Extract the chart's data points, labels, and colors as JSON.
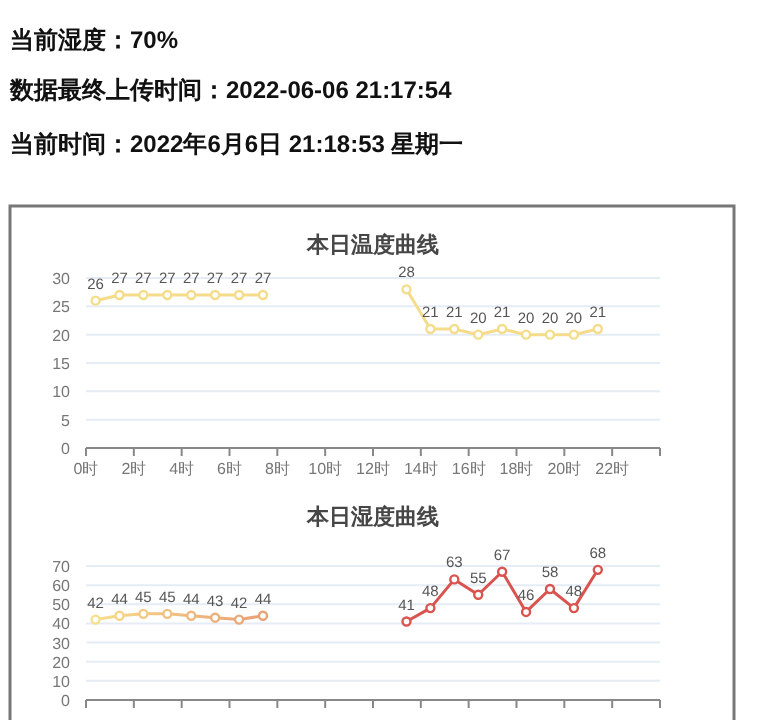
{
  "chart_data": [
    {
      "type": "other",
      "annotations": [
        "当前湿度：70%",
        "数据最终上传时间：2022-06-06 21:17:54",
        "当前时间：2022年6月6日 21:18:53 星期一"
      ]
    },
    {
      "type": "line",
      "title": "本日温度曲线",
      "series": [
        {
          "color": "#f5dc8a",
          "x": [
            0.4,
            1.4,
            2.4,
            3.4,
            4.4,
            5.4,
            6.4,
            7.4
          ],
          "values": [
            26,
            27,
            27,
            27,
            27,
            27,
            27,
            27
          ]
        },
        {
          "color": "#f5dc8a",
          "x": [
            13.4,
            14.4,
            15.4,
            16.4,
            17.4,
            18.4,
            19.4,
            20.4,
            21.4
          ],
          "values": [
            28,
            21,
            21,
            20,
            21,
            20,
            20,
            20,
            21
          ]
        }
      ],
      "xlim": [
        0,
        24
      ],
      "xticks": [
        {
          "value": 0,
          "label": "0时"
        },
        {
          "value": 2,
          "label": "2时"
        },
        {
          "value": 4,
          "label": "4时"
        },
        {
          "value": 6,
          "label": "6时"
        },
        {
          "value": 8,
          "label": "8时"
        },
        {
          "value": 10,
          "label": "10时"
        },
        {
          "value": 12,
          "label": "12时"
        },
        {
          "value": 14,
          "label": "14时"
        },
        {
          "value": 16,
          "label": "16时"
        },
        {
          "value": 18,
          "label": "18时"
        },
        {
          "value": 20,
          "label": "20时"
        },
        {
          "value": 22,
          "label": "22时"
        },
        {
          "value": 24,
          "label": null
        }
      ],
      "ylim": [
        0,
        30
      ],
      "yticks": [
        0,
        5,
        10,
        15,
        20,
        25,
        30
      ],
      "grid": "y",
      "marker": "circle",
      "data_labels": true
    },
    {
      "type": "line",
      "title": "本日湿度曲线",
      "series": [
        {
          "colors": [
            "#f7df8c",
            "#f5d488",
            "#f3ca84",
            "#f1c181",
            "#efb87e",
            "#edb07b",
            "#eba878",
            "#e9a176"
          ],
          "x": [
            0.4,
            1.4,
            2.4,
            3.4,
            4.4,
            5.4,
            6.4,
            7.4
          ],
          "values": [
            42,
            44,
            45,
            45,
            44,
            43,
            42,
            44
          ]
        },
        {
          "color": "#d9534f",
          "x": [
            13.4,
            14.4,
            15.4,
            16.4,
            17.4,
            18.4,
            19.4,
            20.4,
            21.4
          ],
          "values": [
            41,
            48,
            63,
            55,
            67,
            46,
            58,
            48,
            68
          ]
        }
      ],
      "xlim": [
        0,
        24
      ],
      "xticks": [
        0,
        2,
        4,
        6,
        8,
        10,
        12,
        14,
        16,
        18,
        20,
        22,
        24
      ],
      "ylim": [
        0,
        70
      ],
      "yticks": [
        0,
        10,
        20,
        30,
        40,
        50,
        60,
        70
      ],
      "grid": "y",
      "marker": "circle",
      "data_labels": true,
      "tick_labels": "y"
    }
  ]
}
